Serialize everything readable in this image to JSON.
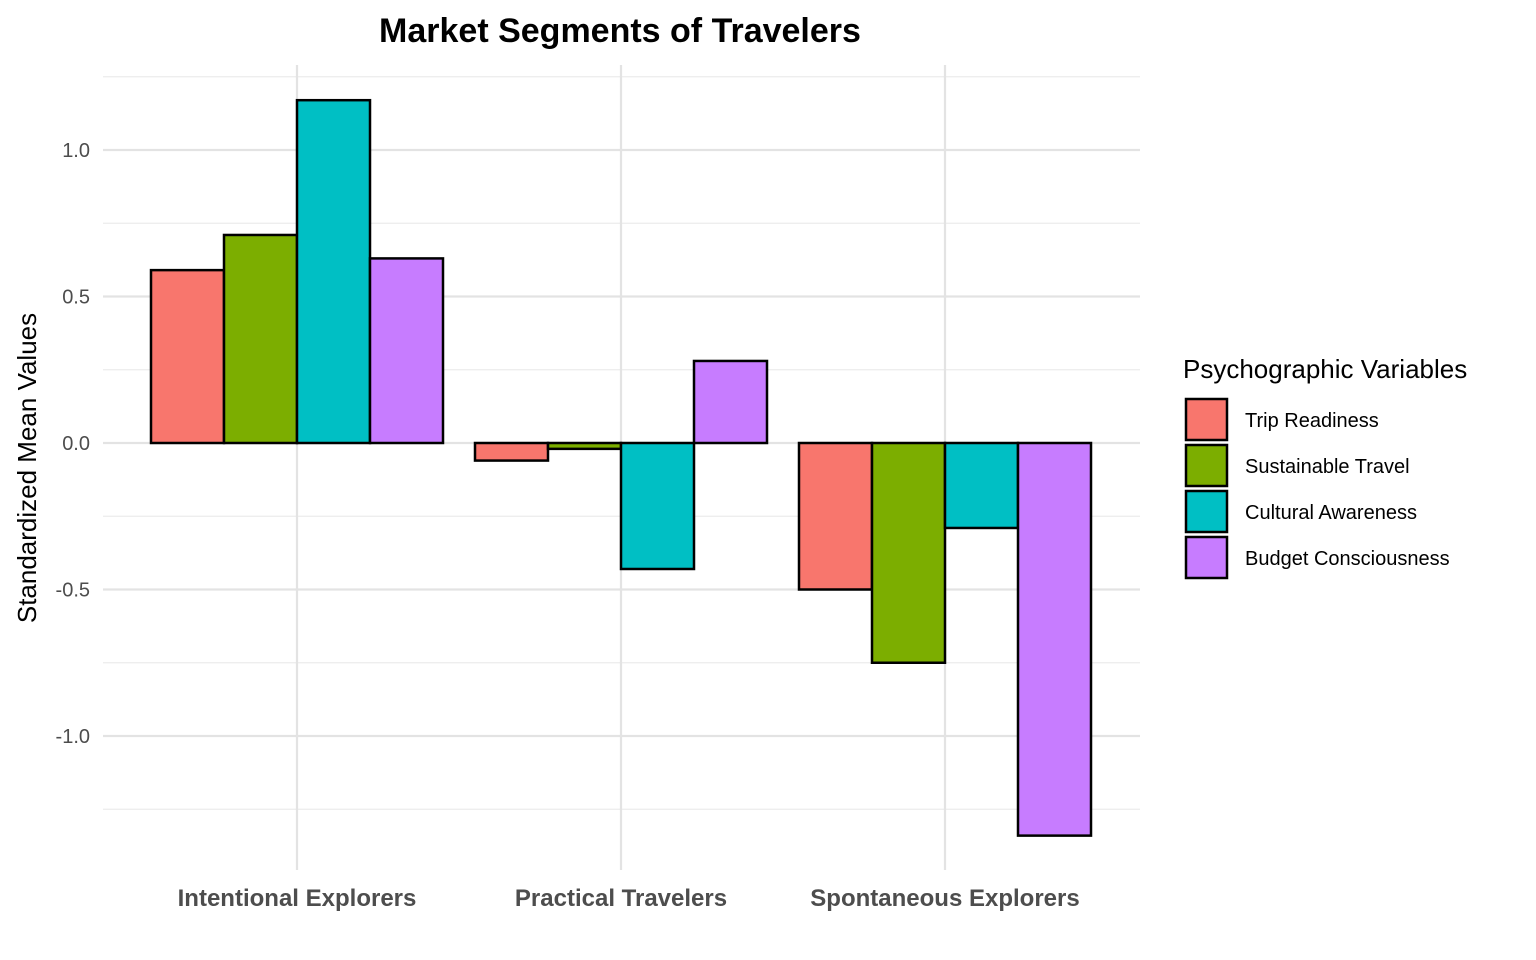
{
  "chart_data": {
    "type": "bar",
    "title": "Market Segments of Travelers",
    "xlabel": "",
    "ylabel": "Standardized Mean Values",
    "categories": [
      "Intentional Explorers",
      "Practical Travelers",
      "Spontaneous Explorers"
    ],
    "series": [
      {
        "name": "Trip Readiness",
        "color": "#F8766D",
        "values": [
          0.59,
          -0.06,
          -0.5
        ]
      },
      {
        "name": "Sustainable Travel",
        "color": "#7CAE00",
        "values": [
          0.71,
          -0.02,
          -0.75
        ]
      },
      {
        "name": "Cultural Awareness",
        "color": "#00BFC4",
        "values": [
          1.17,
          -0.43,
          -0.29
        ]
      },
      {
        "name": "Budget Consciousness",
        "color": "#C77CFF",
        "values": [
          0.63,
          0.28,
          -1.34
        ]
      }
    ],
    "ylim": [
      -1.3,
      1.3
    ],
    "yticks": [
      -1.0,
      -0.5,
      0.0,
      0.5,
      1.0
    ],
    "ytick_labels": [
      "-1.0",
      "-0.5",
      "0.0",
      "0.5",
      "1.0"
    ],
    "grid": true,
    "legend": {
      "title": "Psychographic Variables",
      "position": "right"
    }
  }
}
